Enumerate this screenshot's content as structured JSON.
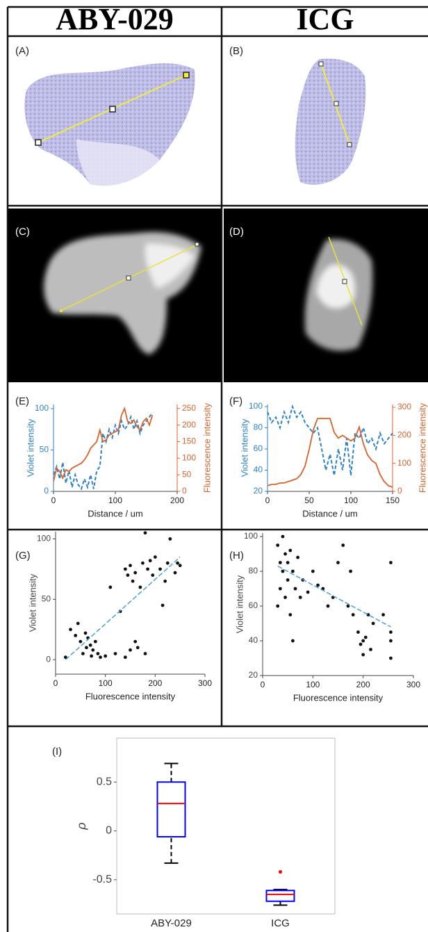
{
  "header": {
    "left": "ABY-029",
    "right": "ICG"
  },
  "image_panels": [
    {
      "label": "(A)"
    },
    {
      "label": "(B)"
    },
    {
      "label": "(C)"
    },
    {
      "label": "(D)"
    }
  ],
  "chart_data": [
    {
      "type": "line",
      "label": "(E)",
      "xlabel": "Distance / um",
      "ylabel": "Violet intensity",
      "y2label": "Fluorescence intensity",
      "xlim": [
        0,
        200
      ],
      "xticks": [
        0,
        100,
        200
      ],
      "ylim": [
        0,
        105
      ],
      "yticks": [
        0,
        50,
        100
      ],
      "y2lim": [
        0,
        262
      ],
      "y2ticks": [
        0,
        50,
        100,
        150,
        200,
        250
      ],
      "x": [
        0,
        5,
        10,
        15,
        20,
        25,
        30,
        35,
        40,
        45,
        50,
        55,
        60,
        65,
        70,
        75,
        80,
        85,
        90,
        95,
        100,
        105,
        110,
        115,
        120,
        125,
        130,
        135,
        140,
        145,
        150,
        155,
        160
      ],
      "series": [
        {
          "name": "Violet intensity",
          "color": "#2b82c9",
          "dashed": true,
          "values": [
            20,
            30,
            15,
            35,
            10,
            25,
            5,
            20,
            8,
            3,
            15,
            5,
            20,
            3,
            25,
            30,
            70,
            60,
            75,
            65,
            80,
            70,
            85,
            75,
            80,
            90,
            75,
            85,
            70,
            80,
            85,
            90,
            95
          ]
        },
        {
          "name": "Fluorescence intensity",
          "color": "#d9622b",
          "axis": "y2",
          "values": [
            30,
            70,
            60,
            40,
            65,
            60,
            70,
            75,
            80,
            85,
            95,
            110,
            130,
            140,
            150,
            185,
            150,
            155,
            170,
            175,
            180,
            185,
            230,
            250,
            210,
            205,
            215,
            195,
            185,
            210,
            220,
            200,
            230
          ]
        }
      ]
    },
    {
      "type": "line",
      "label": "(F)",
      "xlabel": "Distance / um",
      "ylabel": "Violet intensity",
      "y2label": "Fluorescence intensity",
      "xlim": [
        0,
        150
      ],
      "xticks": [
        0,
        50,
        100,
        150
      ],
      "ylim": [
        20,
        102
      ],
      "yticks": [
        20,
        40,
        60,
        80,
        100
      ],
      "y2lim": [
        0,
        310
      ],
      "y2ticks": [
        0,
        100,
        200,
        300
      ],
      "x": [
        0,
        5,
        10,
        15,
        20,
        25,
        30,
        35,
        40,
        45,
        50,
        55,
        60,
        65,
        70,
        75,
        80,
        85,
        90,
        95,
        100,
        105,
        110,
        115,
        120,
        125,
        130,
        135,
        140,
        145,
        150
      ],
      "series": [
        {
          "name": "Violet intensity",
          "color": "#2b82c9",
          "dashed": true,
          "values": [
            95,
            85,
            90,
            80,
            95,
            85,
            100,
            90,
            95,
            85,
            80,
            75,
            80,
            60,
            40,
            55,
            35,
            60,
            40,
            70,
            35,
            75,
            70,
            80,
            65,
            70,
            60,
            75,
            65,
            70,
            75
          ]
        },
        {
          "name": "Fluorescence intensity",
          "color": "#d9622b",
          "axis": "y2",
          "values": [
            20,
            25,
            25,
            30,
            30,
            35,
            40,
            45,
            60,
            90,
            150,
            220,
            260,
            260,
            260,
            260,
            210,
            190,
            200,
            190,
            180,
            190,
            230,
            170,
            130,
            110,
            100,
            60,
            35,
            20,
            15
          ]
        }
      ]
    },
    {
      "type": "scatter",
      "label": "(G)",
      "xlabel": "Fluorescence intensity",
      "ylabel": "Violet intensity",
      "color": "#111111",
      "xlim": [
        0,
        300
      ],
      "xticks": [
        0,
        100,
        200,
        300
      ],
      "ylim": [
        -12,
        106
      ],
      "yticks": [
        0,
        50,
        100
      ],
      "x": [
        20,
        30,
        40,
        45,
        50,
        55,
        60,
        62,
        65,
        70,
        72,
        75,
        80,
        85,
        90,
        100,
        120,
        140,
        150,
        160,
        165,
        180,
        140,
        145,
        150,
        155,
        160,
        170,
        175,
        180,
        185,
        190,
        195,
        200,
        210,
        215,
        220,
        225,
        230,
        240,
        245,
        250,
        130,
        110
      ],
      "y": [
        2,
        25,
        20,
        30,
        15,
        5,
        22,
        10,
        18,
        12,
        3,
        8,
        15,
        5,
        2,
        3,
        5,
        2,
        8,
        15,
        10,
        5,
        75,
        70,
        78,
        65,
        72,
        60,
        80,
        105,
        75,
        82,
        70,
        85,
        75,
        45,
        65,
        80,
        100,
        72,
        80,
        78,
        40,
        60
      ],
      "fit": {
        "color": "#4a9fd8",
        "x": [
          20,
          250
        ],
        "y": [
          0,
          85
        ]
      }
    },
    {
      "type": "scatter",
      "label": "(H)",
      "xlabel": "Fluorescence intensity",
      "ylabel": "Violet intensity",
      "color": "#111111",
      "xlim": [
        0,
        300
      ],
      "xticks": [
        0,
        100,
        200,
        300
      ],
      "ylim": [
        20,
        102
      ],
      "yticks": [
        20,
        40,
        60,
        80,
        100
      ],
      "x": [
        30,
        30,
        35,
        35,
        40,
        40,
        45,
        45,
        50,
        50,
        55,
        55,
        60,
        65,
        70,
        75,
        80,
        90,
        100,
        110,
        120,
        130,
        140,
        150,
        160,
        170,
        180,
        190,
        195,
        200,
        200,
        205,
        210,
        215,
        220,
        240,
        255,
        255,
        255,
        255,
        60,
        175
      ],
      "y": [
        60,
        95,
        85,
        70,
        100,
        80,
        90,
        65,
        85,
        75,
        92,
        55,
        80,
        70,
        88,
        65,
        75,
        68,
        80,
        72,
        70,
        60,
        65,
        85,
        95,
        60,
        55,
        45,
        38,
        32,
        40,
        42,
        55,
        35,
        50,
        55,
        85,
        45,
        30,
        40,
        40,
        80
      ],
      "fit": {
        "color": "#4a9fd8",
        "x": [
          30,
          255
        ],
        "y": [
          83,
          48
        ]
      }
    },
    {
      "type": "box",
      "label": "(I)",
      "ylabel": "ρ",
      "categories": [
        "ABY-029",
        "ICG"
      ],
      "ylim": [
        -0.85,
        0.95
      ],
      "yticks": [
        -0.5,
        0,
        0.5
      ],
      "box_color": "#0000ff",
      "median_color": "#ff0000",
      "boxes": [
        {
          "min": -0.33,
          "q1": -0.06,
          "median": 0.28,
          "q3": 0.5,
          "max": 0.69,
          "outliers": []
        },
        {
          "min": -0.76,
          "q1": -0.72,
          "median": -0.65,
          "q3": -0.61,
          "max": -0.6,
          "outliers": [
            -0.42
          ]
        }
      ]
    }
  ]
}
